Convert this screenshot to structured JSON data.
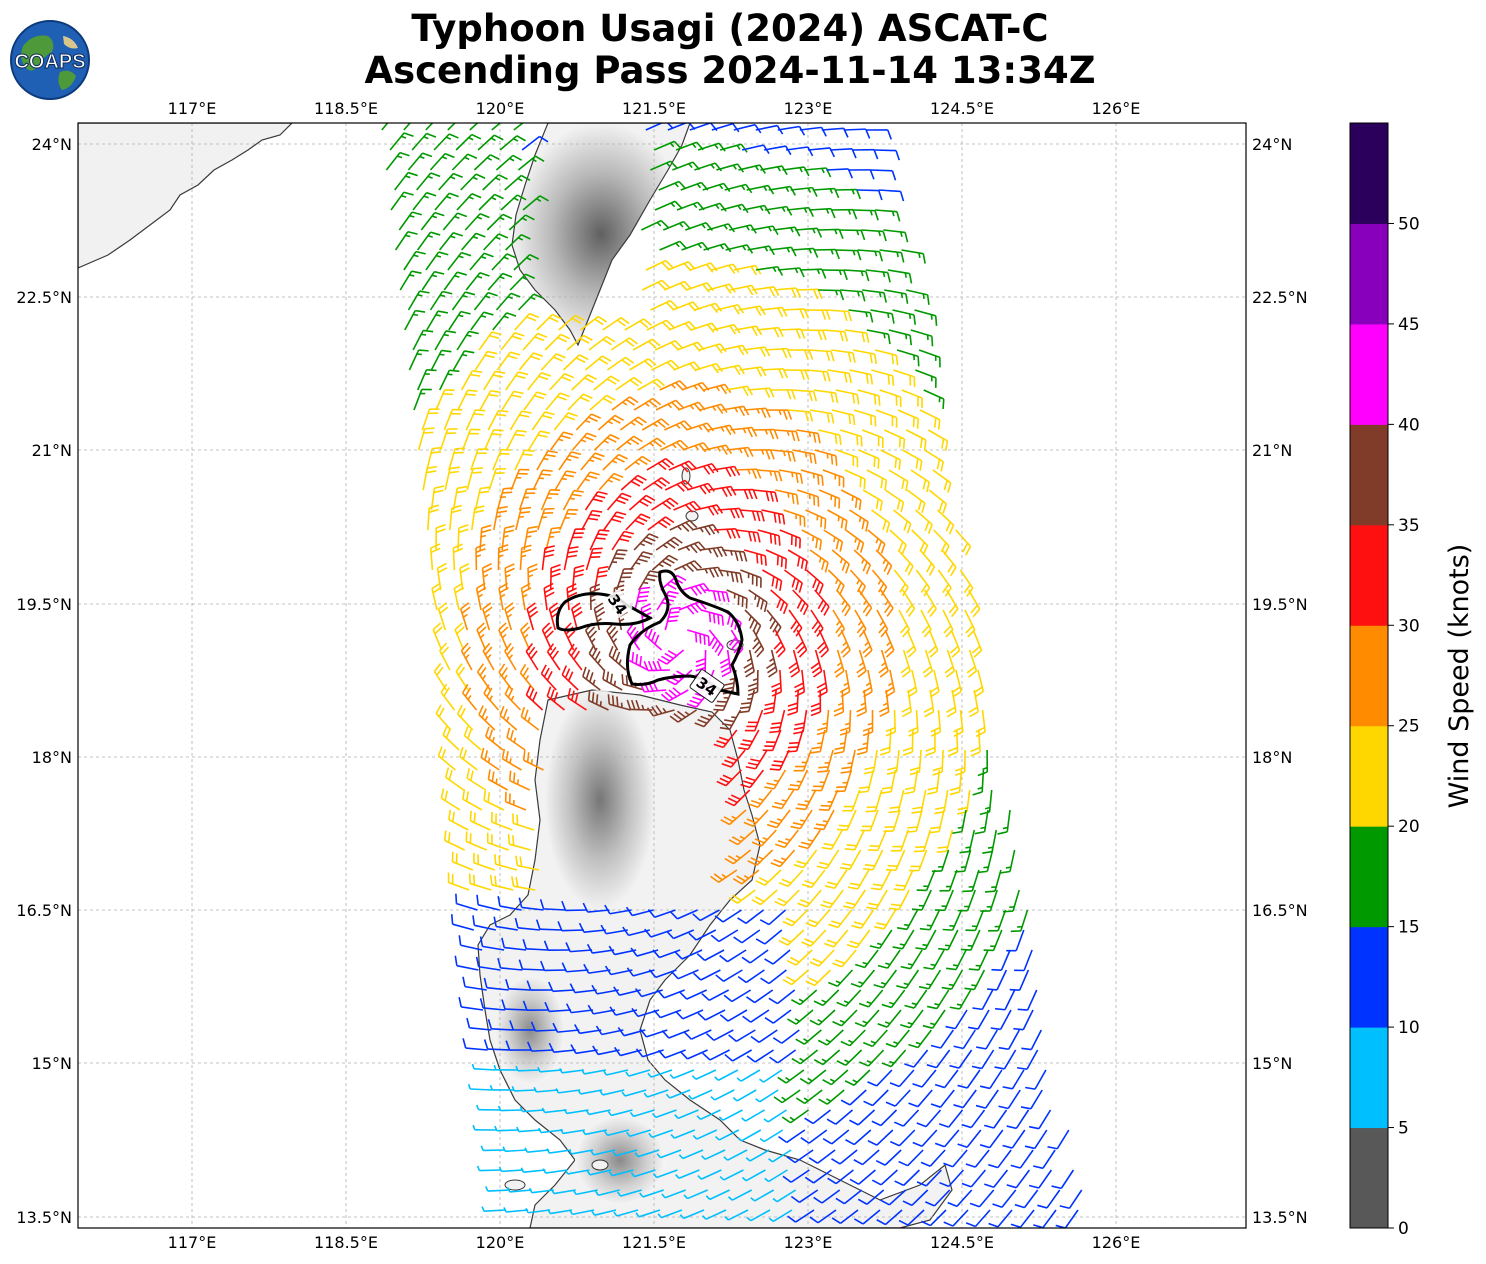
{
  "title": {
    "line1": "Typhoon Usagi (2024) ASCAT-C",
    "line2": "Ascending Pass 2024-11-14 13:34Z"
  },
  "logo": {
    "text": "COAPS",
    "icon": "globe-logo-icon"
  },
  "map": {
    "lon_ticks": [
      "117°E",
      "118.5°E",
      "120°E",
      "121.5°E",
      "123°E",
      "124.5°E",
      "126°E"
    ],
    "lat_ticks": [
      "24°N",
      "22.5°N",
      "21°N",
      "19.5°N",
      "18°N",
      "16.5°N",
      "15°N",
      "13.5°N"
    ],
    "contour_label": "34",
    "contour_labels": [
      "34",
      "34"
    ]
  },
  "colorbar": {
    "label": "Wind Speed (knots)",
    "ticks": [
      "0",
      "5",
      "10",
      "15",
      "20",
      "25",
      "30",
      "35",
      "40",
      "45",
      "50"
    ],
    "colors": [
      "#585858",
      "#00bfff",
      "#0033ff",
      "#009900",
      "#ffd700",
      "#ff8c00",
      "#ff1010",
      "#803c28",
      "#ff00ff",
      "#8800bb",
      "#2a005c"
    ]
  },
  "chart_data": {
    "type": "map",
    "title": "Typhoon Usagi (2024) ASCAT-C\nAscending Pass 2024-11-14 13:34Z",
    "x_range_lon": [
      115.9,
      127.3
    ],
    "y_range_lat": [
      13.4,
      24.2
    ],
    "storm_center": [
      121.55,
      19.15
    ],
    "wind_radius_contour_kt": 34,
    "colorbar": {
      "label": "Wind Speed (knots)",
      "bins": [
        0,
        5,
        10,
        15,
        20,
        25,
        30,
        35,
        40,
        45,
        50,
        55
      ]
    }
  }
}
